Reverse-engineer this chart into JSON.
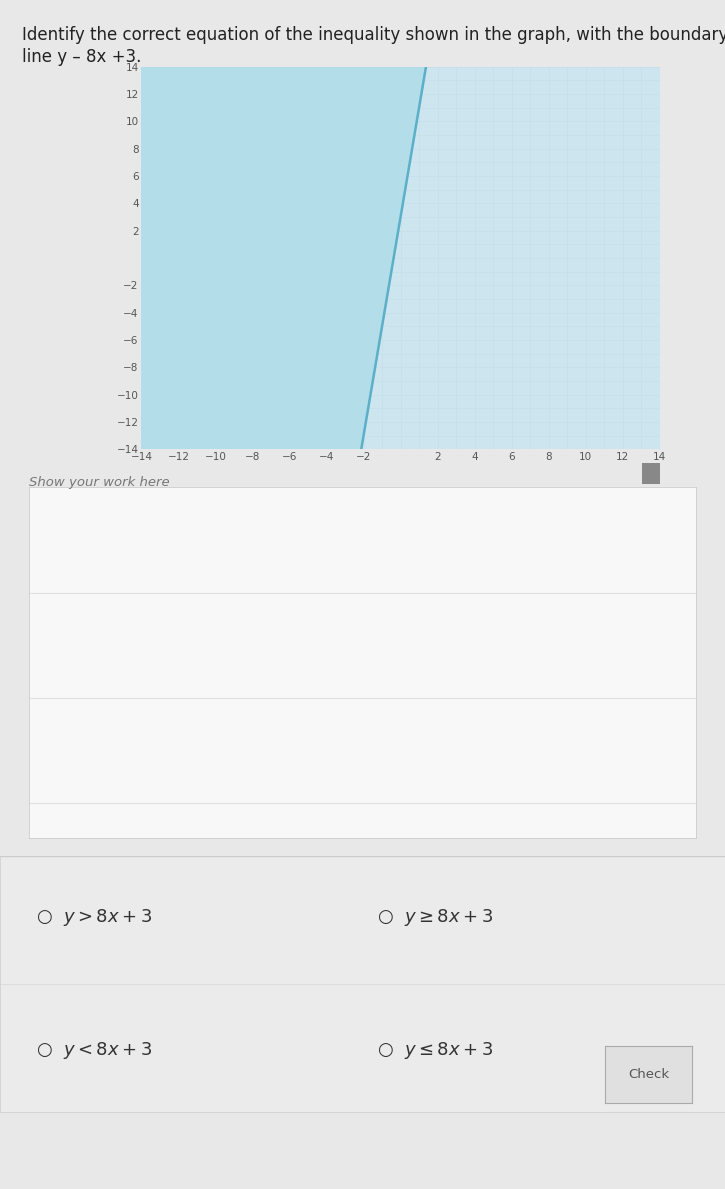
{
  "title_line1": "Identify the correct equation of the inequality shown in the graph, with the boundary",
  "title_line2": "line y – 8x +3.",
  "slope": 8,
  "intercept": 3,
  "xmin": -14,
  "xmax": 14,
  "ymin": -14,
  "ymax": 14,
  "shade_color": "#b3dde8",
  "line_color": "#5bafc8",
  "line_width": 1.8,
  "grid_minor_color": "#c5dde6",
  "grid_major_color": "#9ec8d6",
  "axis_color": "#666666",
  "bg_color": "#e8e8e8",
  "graph_bg": "#cce5ef",
  "white_bg": "#f0f0f0",
  "show_your_work_label": "Show your work here",
  "check_button_text": "Check",
  "title_fontsize": 12,
  "tick_fontsize": 7.5,
  "label_fontsize": 11,
  "option_fontsize": 13
}
